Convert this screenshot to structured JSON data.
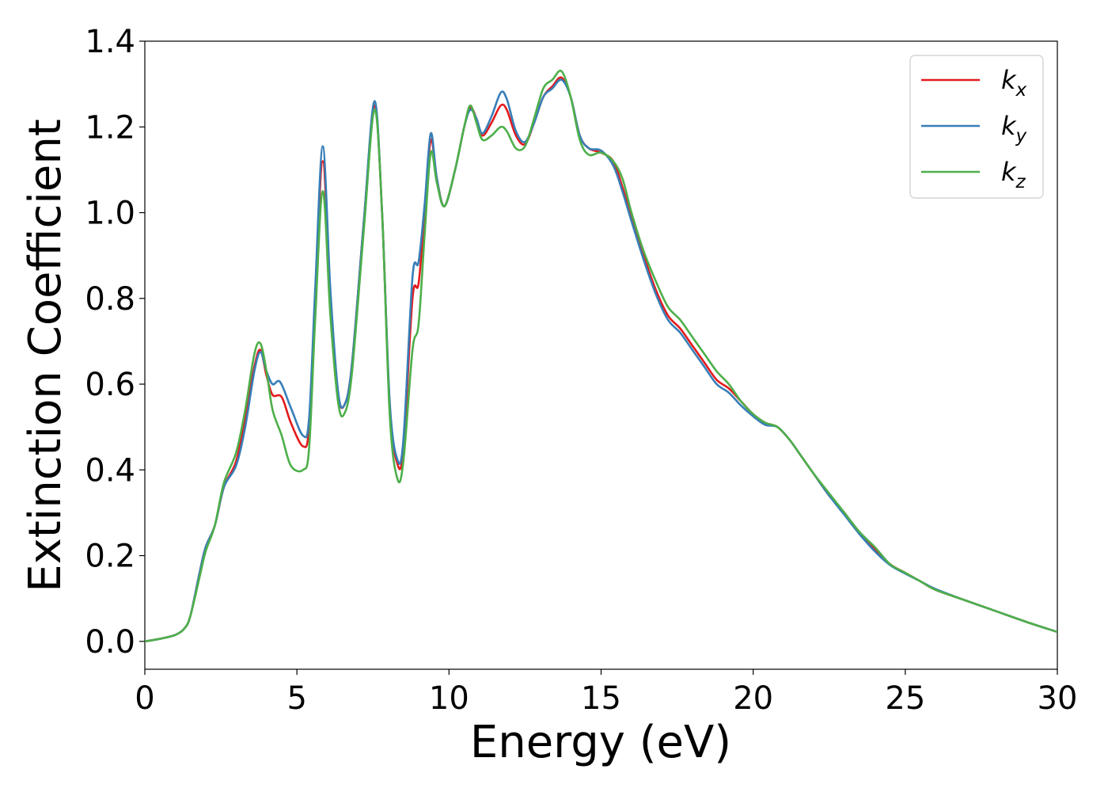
{
  "chart_data": {
    "type": "line",
    "title": "",
    "xlabel": "Energy (eV)",
    "ylabel": "Extinction Coefficient",
    "xlim": [
      0,
      30
    ],
    "ylim": [
      -0.065,
      1.4
    ],
    "xticks": [
      0,
      5,
      10,
      15,
      20,
      25,
      30
    ],
    "xtick_labels": [
      "0",
      "5",
      "10",
      "15",
      "20",
      "25",
      "30"
    ],
    "yticks": [
      0.0,
      0.2,
      0.4,
      0.6,
      0.8,
      1.0,
      1.2,
      1.4
    ],
    "ytick_labels": [
      "0.0",
      "0.2",
      "0.4",
      "0.6",
      "0.8",
      "1.0",
      "1.2",
      "1.4"
    ],
    "grid": false,
    "legend_position": "top-right",
    "series": [
      {
        "name": "k_x",
        "label_base": "k",
        "label_sub": "x",
        "color": "#e41a1c",
        "points": [
          [
            0,
            0
          ],
          [
            0.5,
            0.006
          ],
          [
            1,
            0.015
          ],
          [
            1.3,
            0.03
          ],
          [
            1.5,
            0.06
          ],
          [
            1.8,
            0.16
          ],
          [
            2.0,
            0.22
          ],
          [
            2.3,
            0.27
          ],
          [
            2.6,
            0.36
          ],
          [
            3.0,
            0.42
          ],
          [
            3.3,
            0.52
          ],
          [
            3.6,
            0.64
          ],
          [
            3.8,
            0.68
          ],
          [
            4.0,
            0.62
          ],
          [
            4.2,
            0.575
          ],
          [
            4.5,
            0.57
          ],
          [
            4.8,
            0.51
          ],
          [
            5.2,
            0.455
          ],
          [
            5.4,
            0.5
          ],
          [
            5.6,
            0.8
          ],
          [
            5.85,
            1.12
          ],
          [
            6.1,
            0.8
          ],
          [
            6.35,
            0.58
          ],
          [
            6.55,
            0.55
          ],
          [
            6.8,
            0.64
          ],
          [
            7.2,
            0.98
          ],
          [
            7.55,
            1.25
          ],
          [
            7.8,
            1.0
          ],
          [
            8.05,
            0.55
          ],
          [
            8.3,
            0.415
          ],
          [
            8.5,
            0.45
          ],
          [
            8.8,
            0.8
          ],
          [
            9.0,
            0.835
          ],
          [
            9.2,
            1.0
          ],
          [
            9.4,
            1.17
          ],
          [
            9.6,
            1.08
          ],
          [
            9.85,
            1.015
          ],
          [
            10.2,
            1.1
          ],
          [
            10.5,
            1.2
          ],
          [
            10.7,
            1.245
          ],
          [
            10.9,
            1.22
          ],
          [
            11.1,
            1.18
          ],
          [
            11.4,
            1.21
          ],
          [
            11.7,
            1.25
          ],
          [
            11.9,
            1.24
          ],
          [
            12.2,
            1.18
          ],
          [
            12.5,
            1.16
          ],
          [
            12.8,
            1.21
          ],
          [
            13.1,
            1.27
          ],
          [
            13.4,
            1.295
          ],
          [
            13.7,
            1.315
          ],
          [
            14.0,
            1.27
          ],
          [
            14.3,
            1.18
          ],
          [
            14.6,
            1.15
          ],
          [
            15.0,
            1.14
          ],
          [
            15.4,
            1.12
          ],
          [
            15.7,
            1.06
          ],
          [
            16.0,
            0.99
          ],
          [
            16.4,
            0.9
          ],
          [
            16.8,
            0.82
          ],
          [
            17.2,
            0.76
          ],
          [
            17.6,
            0.73
          ],
          [
            18.0,
            0.69
          ],
          [
            18.4,
            0.65
          ],
          [
            18.8,
            0.61
          ],
          [
            19.2,
            0.59
          ],
          [
            19.6,
            0.56
          ],
          [
            20.0,
            0.53
          ],
          [
            20.4,
            0.51
          ],
          [
            20.8,
            0.5
          ],
          [
            21.2,
            0.47
          ],
          [
            21.6,
            0.43
          ],
          [
            22.0,
            0.39
          ],
          [
            22.5,
            0.34
          ],
          [
            23.0,
            0.3
          ],
          [
            23.5,
            0.25
          ],
          [
            24.0,
            0.215
          ],
          [
            24.5,
            0.18
          ],
          [
            25.0,
            0.16
          ],
          [
            25.5,
            0.14
          ],
          [
            26.0,
            0.12
          ],
          [
            27.0,
            0.095
          ],
          [
            28.0,
            0.07
          ],
          [
            29.0,
            0.045
          ],
          [
            30.0,
            0.022
          ]
        ]
      },
      {
        "name": "k_y",
        "label_base": "k",
        "label_sub": "y",
        "color": "#377eb8",
        "points": [
          [
            0,
            0
          ],
          [
            0.5,
            0.006
          ],
          [
            1,
            0.015
          ],
          [
            1.3,
            0.03
          ],
          [
            1.5,
            0.06
          ],
          [
            1.8,
            0.16
          ],
          [
            2.0,
            0.22
          ],
          [
            2.3,
            0.27
          ],
          [
            2.6,
            0.36
          ],
          [
            3.0,
            0.41
          ],
          [
            3.3,
            0.5
          ],
          [
            3.6,
            0.63
          ],
          [
            3.8,
            0.675
          ],
          [
            4.0,
            0.63
          ],
          [
            4.2,
            0.6
          ],
          [
            4.45,
            0.605
          ],
          [
            4.8,
            0.545
          ],
          [
            5.2,
            0.48
          ],
          [
            5.4,
            0.52
          ],
          [
            5.6,
            0.82
          ],
          [
            5.85,
            1.155
          ],
          [
            6.1,
            0.82
          ],
          [
            6.35,
            0.585
          ],
          [
            6.55,
            0.55
          ],
          [
            6.8,
            0.64
          ],
          [
            7.2,
            0.98
          ],
          [
            7.55,
            1.26
          ],
          [
            7.8,
            1.0
          ],
          [
            8.05,
            0.56
          ],
          [
            8.3,
            0.425
          ],
          [
            8.5,
            0.47
          ],
          [
            8.8,
            0.85
          ],
          [
            9.0,
            0.885
          ],
          [
            9.2,
            1.02
          ],
          [
            9.4,
            1.185
          ],
          [
            9.6,
            1.08
          ],
          [
            9.85,
            1.015
          ],
          [
            10.2,
            1.1
          ],
          [
            10.5,
            1.2
          ],
          [
            10.7,
            1.24
          ],
          [
            10.9,
            1.22
          ],
          [
            11.1,
            1.185
          ],
          [
            11.4,
            1.225
          ],
          [
            11.7,
            1.28
          ],
          [
            11.9,
            1.265
          ],
          [
            12.2,
            1.19
          ],
          [
            12.5,
            1.165
          ],
          [
            12.8,
            1.21
          ],
          [
            13.1,
            1.27
          ],
          [
            13.4,
            1.29
          ],
          [
            13.7,
            1.31
          ],
          [
            14.0,
            1.27
          ],
          [
            14.3,
            1.18
          ],
          [
            14.6,
            1.15
          ],
          [
            15.0,
            1.145
          ],
          [
            15.4,
            1.11
          ],
          [
            15.7,
            1.05
          ],
          [
            16.0,
            0.98
          ],
          [
            16.4,
            0.89
          ],
          [
            16.8,
            0.81
          ],
          [
            17.2,
            0.75
          ],
          [
            17.6,
            0.72
          ],
          [
            18.0,
            0.68
          ],
          [
            18.4,
            0.64
          ],
          [
            18.8,
            0.6
          ],
          [
            19.2,
            0.58
          ],
          [
            19.6,
            0.55
          ],
          [
            20.0,
            0.525
          ],
          [
            20.4,
            0.505
          ],
          [
            20.8,
            0.5
          ],
          [
            21.2,
            0.47
          ],
          [
            21.6,
            0.43
          ],
          [
            22.0,
            0.39
          ],
          [
            22.5,
            0.34
          ],
          [
            23.0,
            0.295
          ],
          [
            23.5,
            0.25
          ],
          [
            24.0,
            0.21
          ],
          [
            24.5,
            0.178
          ],
          [
            25.0,
            0.158
          ],
          [
            25.5,
            0.14
          ],
          [
            26.0,
            0.122
          ],
          [
            27.0,
            0.095
          ],
          [
            28.0,
            0.07
          ],
          [
            29.0,
            0.045
          ],
          [
            30.0,
            0.022
          ]
        ]
      },
      {
        "name": "k_z",
        "label_base": "k",
        "label_sub": "z",
        "color": "#4daf4a",
        "points": [
          [
            0,
            0
          ],
          [
            0.5,
            0.006
          ],
          [
            1,
            0.015
          ],
          [
            1.3,
            0.03
          ],
          [
            1.5,
            0.06
          ],
          [
            1.8,
            0.15
          ],
          [
            2.0,
            0.21
          ],
          [
            2.3,
            0.27
          ],
          [
            2.6,
            0.37
          ],
          [
            3.0,
            0.44
          ],
          [
            3.3,
            0.54
          ],
          [
            3.6,
            0.67
          ],
          [
            3.8,
            0.695
          ],
          [
            4.0,
            0.63
          ],
          [
            4.2,
            0.54
          ],
          [
            4.5,
            0.48
          ],
          [
            4.8,
            0.41
          ],
          [
            5.2,
            0.4
          ],
          [
            5.4,
            0.45
          ],
          [
            5.6,
            0.75
          ],
          [
            5.85,
            1.05
          ],
          [
            6.1,
            0.76
          ],
          [
            6.35,
            0.56
          ],
          [
            6.55,
            0.53
          ],
          [
            6.8,
            0.62
          ],
          [
            7.2,
            0.96
          ],
          [
            7.55,
            1.24
          ],
          [
            7.8,
            1.0
          ],
          [
            8.05,
            0.53
          ],
          [
            8.3,
            0.38
          ],
          [
            8.5,
            0.42
          ],
          [
            8.8,
            0.68
          ],
          [
            9.0,
            0.74
          ],
          [
            9.2,
            0.95
          ],
          [
            9.4,
            1.14
          ],
          [
            9.6,
            1.07
          ],
          [
            9.85,
            1.015
          ],
          [
            10.2,
            1.1
          ],
          [
            10.5,
            1.2
          ],
          [
            10.7,
            1.25
          ],
          [
            10.9,
            1.21
          ],
          [
            11.1,
            1.17
          ],
          [
            11.4,
            1.18
          ],
          [
            11.7,
            1.2
          ],
          [
            11.9,
            1.19
          ],
          [
            12.2,
            1.15
          ],
          [
            12.5,
            1.155
          ],
          [
            12.8,
            1.22
          ],
          [
            13.1,
            1.29
          ],
          [
            13.4,
            1.31
          ],
          [
            13.7,
            1.33
          ],
          [
            14.0,
            1.27
          ],
          [
            14.3,
            1.17
          ],
          [
            14.6,
            1.135
          ],
          [
            15.0,
            1.14
          ],
          [
            15.4,
            1.12
          ],
          [
            15.7,
            1.08
          ],
          [
            16.0,
            1.0
          ],
          [
            16.4,
            0.91
          ],
          [
            16.8,
            0.84
          ],
          [
            17.2,
            0.78
          ],
          [
            17.6,
            0.75
          ],
          [
            18.0,
            0.71
          ],
          [
            18.4,
            0.67
          ],
          [
            18.8,
            0.63
          ],
          [
            19.2,
            0.6
          ],
          [
            19.6,
            0.56
          ],
          [
            20.0,
            0.53
          ],
          [
            20.4,
            0.51
          ],
          [
            20.8,
            0.5
          ],
          [
            21.2,
            0.47
          ],
          [
            21.6,
            0.43
          ],
          [
            22.0,
            0.39
          ],
          [
            22.5,
            0.345
          ],
          [
            23.0,
            0.3
          ],
          [
            23.5,
            0.255
          ],
          [
            24.0,
            0.22
          ],
          [
            24.5,
            0.18
          ],
          [
            25.0,
            0.16
          ],
          [
            25.5,
            0.14
          ],
          [
            26.0,
            0.12
          ],
          [
            27.0,
            0.095
          ],
          [
            28.0,
            0.07
          ],
          [
            29.0,
            0.045
          ],
          [
            30.0,
            0.022
          ]
        ]
      }
    ]
  }
}
